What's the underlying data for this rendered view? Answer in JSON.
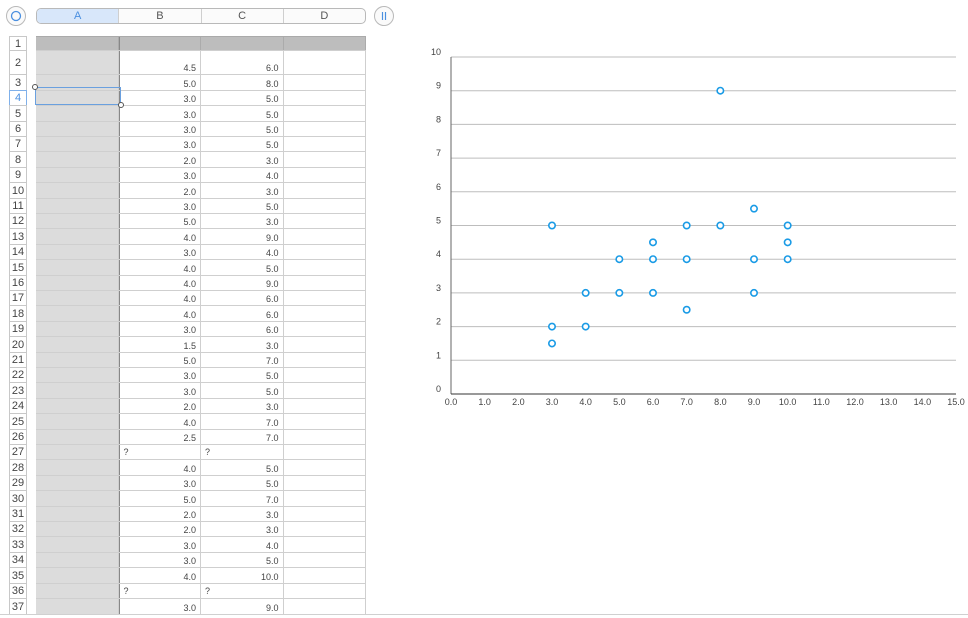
{
  "toolbar": {
    "corner_icon": "circle-icon",
    "pause_icon": "pause-icon"
  },
  "columns": [
    "A",
    "B",
    "C",
    "D"
  ],
  "active_column": "A",
  "active_row": "4",
  "rows": [
    {
      "n": "1",
      "b": "",
      "c": "",
      "d": ""
    },
    {
      "n": "2",
      "b": "4.5",
      "c": "6.0",
      "d": ""
    },
    {
      "n": "3",
      "b": "5.0",
      "c": "8.0",
      "d": ""
    },
    {
      "n": "4",
      "b": "3.0",
      "c": "5.0",
      "d": ""
    },
    {
      "n": "5",
      "b": "3.0",
      "c": "5.0",
      "d": ""
    },
    {
      "n": "6",
      "b": "3.0",
      "c": "5.0",
      "d": ""
    },
    {
      "n": "7",
      "b": "3.0",
      "c": "5.0",
      "d": ""
    },
    {
      "n": "8",
      "b": "2.0",
      "c": "3.0",
      "d": ""
    },
    {
      "n": "9",
      "b": "3.0",
      "c": "4.0",
      "d": ""
    },
    {
      "n": "10",
      "b": "2.0",
      "c": "3.0",
      "d": ""
    },
    {
      "n": "11",
      "b": "3.0",
      "c": "5.0",
      "d": ""
    },
    {
      "n": "12",
      "b": "5.0",
      "c": "3.0",
      "d": ""
    },
    {
      "n": "13",
      "b": "4.0",
      "c": "9.0",
      "d": ""
    },
    {
      "n": "14",
      "b": "3.0",
      "c": "4.0",
      "d": ""
    },
    {
      "n": "15",
      "b": "4.0",
      "c": "5.0",
      "d": ""
    },
    {
      "n": "16",
      "b": "4.0",
      "c": "9.0",
      "d": ""
    },
    {
      "n": "17",
      "b": "4.0",
      "c": "6.0",
      "d": ""
    },
    {
      "n": "18",
      "b": "4.0",
      "c": "6.0",
      "d": ""
    },
    {
      "n": "19",
      "b": "3.0",
      "c": "6.0",
      "d": ""
    },
    {
      "n": "20",
      "b": "1.5",
      "c": "3.0",
      "d": ""
    },
    {
      "n": "21",
      "b": "5.0",
      "c": "7.0",
      "d": ""
    },
    {
      "n": "22",
      "b": "3.0",
      "c": "5.0",
      "d": ""
    },
    {
      "n": "23",
      "b": "3.0",
      "c": "5.0",
      "d": ""
    },
    {
      "n": "24",
      "b": "2.0",
      "c": "3.0",
      "d": ""
    },
    {
      "n": "25",
      "b": "4.0",
      "c": "7.0",
      "d": ""
    },
    {
      "n": "26",
      "b": "2.5",
      "c": "7.0",
      "d": ""
    },
    {
      "n": "27",
      "b": "?",
      "c": "?",
      "d": "",
      "left": true
    },
    {
      "n": "28",
      "b": "4.0",
      "c": "5.0",
      "d": ""
    },
    {
      "n": "29",
      "b": "3.0",
      "c": "5.0",
      "d": ""
    },
    {
      "n": "30",
      "b": "5.0",
      "c": "7.0",
      "d": ""
    },
    {
      "n": "31",
      "b": "2.0",
      "c": "3.0",
      "d": ""
    },
    {
      "n": "32",
      "b": "2.0",
      "c": "3.0",
      "d": ""
    },
    {
      "n": "33",
      "b": "3.0",
      "c": "4.0",
      "d": ""
    },
    {
      "n": "34",
      "b": "3.0",
      "c": "5.0",
      "d": ""
    },
    {
      "n": "35",
      "b": "4.0",
      "c": "10.0",
      "d": ""
    },
    {
      "n": "36",
      "b": "?",
      "c": "?",
      "d": "",
      "left": true
    },
    {
      "n": "37",
      "b": "3.0",
      "c": "9.0",
      "d": ""
    }
  ],
  "chart_data": {
    "type": "scatter",
    "title": "",
    "xlabel": "",
    "ylabel": "",
    "xlim": [
      0,
      15
    ],
    "ylim": [
      0,
      10
    ],
    "xticks": [
      "0.0",
      "1.0",
      "2.0",
      "3.0",
      "4.0",
      "5.0",
      "6.0",
      "7.0",
      "8.0",
      "9.0",
      "10.0",
      "11.0",
      "12.0",
      "13.0",
      "14.0",
      "15.0"
    ],
    "yticks": [
      "0",
      "1",
      "2",
      "3",
      "4",
      "5",
      "6",
      "7",
      "8",
      "9",
      "10"
    ],
    "grid": "horizontal",
    "marker_color": "#1a9be6",
    "series": [
      {
        "points": [
          [
            3,
            5
          ],
          [
            3,
            2
          ],
          [
            3,
            1.5
          ],
          [
            4,
            3
          ],
          [
            4,
            2
          ],
          [
            5,
            4
          ],
          [
            5,
            3
          ],
          [
            6,
            4.5
          ],
          [
            6,
            4
          ],
          [
            6,
            3
          ],
          [
            7,
            5
          ],
          [
            7,
            4
          ],
          [
            7,
            2.5
          ],
          [
            8,
            9
          ],
          [
            8,
            5
          ],
          [
            9,
            5.5
          ],
          [
            9,
            4
          ],
          [
            9,
            3
          ],
          [
            10,
            5
          ],
          [
            10,
            4.5
          ],
          [
            10,
            4
          ]
        ]
      }
    ]
  }
}
